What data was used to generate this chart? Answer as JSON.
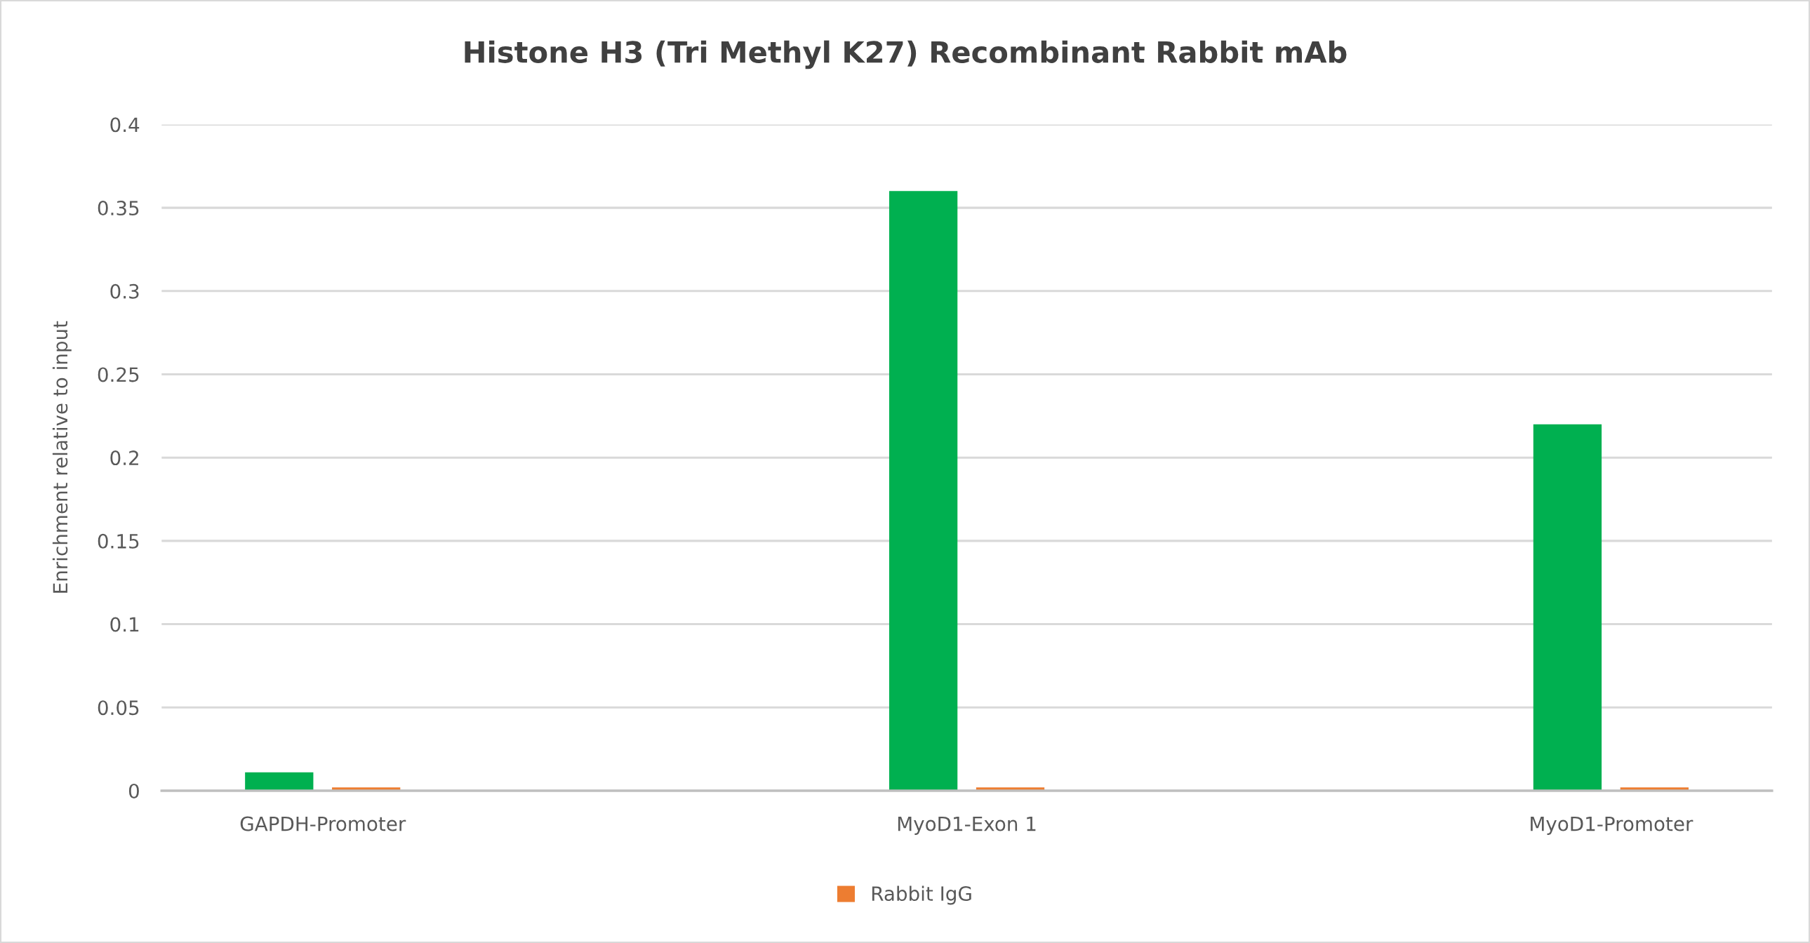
{
  "chart_data": {
    "type": "bar",
    "title": "Histone H3 (Tri Methyl K27) Recombinant Rabbit mAb",
    "ylabel": "Enrichment relative to input",
    "categories": [
      "GAPDH-Promoter",
      "MyoD1-Exon 1",
      "MyoD1-Promoter"
    ],
    "series": [
      {
        "color": "#00b050",
        "values": [
          0.011,
          0.36,
          0.22
        ]
      },
      {
        "name": "Rabbit IgG",
        "color": "#ed7d31",
        "values": [
          0.002,
          0.002,
          0.002
        ]
      }
    ],
    "ylim": [
      0,
      0.4
    ],
    "yticks": [
      0,
      0.05,
      0.1,
      0.15,
      0.2,
      0.25,
      0.3,
      0.35,
      0.4
    ],
    "grid": "y",
    "legend": "bottom"
  }
}
